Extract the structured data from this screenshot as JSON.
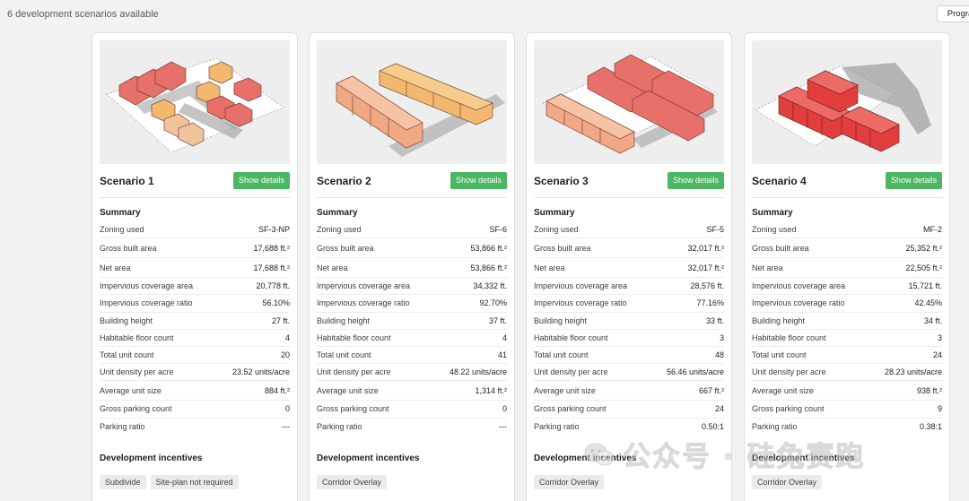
{
  "header": {
    "count_text": "6 development scenarios available",
    "program_button": "Program"
  },
  "colors": {
    "accent_green": "#4bb762",
    "house_red": "#e8706a",
    "house_salmon": "#f1a884",
    "house_orange": "#f3b870"
  },
  "row_labels": [
    "Zoning used",
    "Gross built area",
    "Net area",
    "Impervious coverage area",
    "Impervious coverage ratio",
    "Building height",
    "Habitable floor count",
    "Total unit count",
    "Unit density per acre",
    "Average unit size",
    "Gross parking count",
    "Parking ratio"
  ],
  "scenarios": [
    {
      "title": "Scenario 1",
      "details_label": "Show details",
      "summary_title": "Summary",
      "values": [
        "SF-3-NP",
        "17,688 ft.²",
        "17,688 ft.²",
        "20,778 ft.",
        "56.10%",
        "27 ft.",
        "4",
        "20",
        "23.52 units/acre",
        "884 ft.²",
        "0",
        "---"
      ],
      "incentives_title": "Development incentives",
      "incentives": [
        "Subdivide",
        "Site-plan not required"
      ]
    },
    {
      "title": "Scenario 2",
      "details_label": "Show details",
      "summary_title": "Summary",
      "values": [
        "SF-6",
        "53,866 ft.²",
        "53,866 ft.²",
        "34,332 ft.",
        "92.70%",
        "37 ft.",
        "4",
        "41",
        "48.22 units/acre",
        "1,314 ft.²",
        "0",
        "---"
      ],
      "incentives_title": "Development incentives",
      "incentives": [
        "Corridor Overlay"
      ]
    },
    {
      "title": "Scenario 3",
      "details_label": "Show details",
      "summary_title": "Summary",
      "values": [
        "SF-5",
        "32,017 ft.²",
        "32,017 ft.²",
        "28,576 ft.",
        "77.16%",
        "33 ft.",
        "3",
        "48",
        "56.46 units/acre",
        "667 ft.²",
        "24",
        "0.50:1"
      ],
      "incentives_title": "Development incentives",
      "incentives": [
        "Corridor Overlay"
      ]
    },
    {
      "title": "Scenario 4",
      "details_label": "Show details",
      "summary_title": "Summary",
      "values": [
        "MF-2",
        "25,352 ft.²",
        "22,505 ft.²",
        "15,721 ft.",
        "42.45%",
        "34 ft.",
        "3",
        "24",
        "28.23 units/acre",
        "938 ft.²",
        "9",
        "0.38:1"
      ],
      "incentives_title": "Development incentives",
      "incentives": [
        "Corridor Overlay"
      ]
    }
  ],
  "watermark": {
    "text": "公众号 · 硅兔赛跑",
    "icon": "wechat-icon"
  }
}
